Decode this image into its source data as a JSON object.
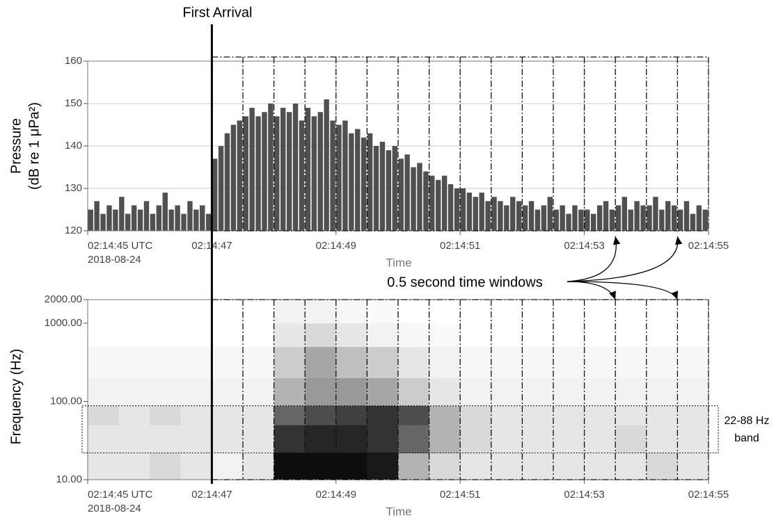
{
  "chart_data": [
    {
      "type": "bar",
      "ylabel": [
        "Pressure",
        "(dB re 1 μPa²)"
      ],
      "xlabel": "Time",
      "color": "#505050",
      "x": [
        45.0,
        45.1,
        45.2,
        45.3,
        45.4,
        45.5,
        45.6,
        45.7,
        45.8,
        45.9,
        46.0,
        46.1,
        46.2,
        46.3,
        46.4,
        46.5,
        46.6,
        46.7,
        46.8,
        46.9,
        47.0,
        47.1,
        47.2,
        47.3,
        47.4,
        47.5,
        47.6,
        47.7,
        47.8,
        47.9,
        48.0,
        48.1,
        48.2,
        48.3,
        48.4,
        48.5,
        48.6,
        48.7,
        48.8,
        48.9,
        49.0,
        49.1,
        49.2,
        49.3,
        49.4,
        49.5,
        49.6,
        49.7,
        49.8,
        49.9,
        50.0,
        50.1,
        50.2,
        50.3,
        50.4,
        50.5,
        50.6,
        50.7,
        50.8,
        50.9,
        51.0,
        51.1,
        51.2,
        51.3,
        51.4,
        51.5,
        51.6,
        51.7,
        51.8,
        51.9,
        52.0,
        52.1,
        52.2,
        52.3,
        52.4,
        52.5,
        52.6,
        52.7,
        52.8,
        52.9,
        53.0,
        53.1,
        53.2,
        53.3,
        53.4,
        53.5,
        53.6,
        53.7,
        53.8,
        53.9,
        54.0,
        54.1,
        54.2,
        54.3,
        54.4,
        54.5,
        54.6,
        54.7,
        54.8,
        54.9
      ],
      "values": [
        125,
        127,
        124,
        126,
        125,
        128,
        124,
        126,
        125,
        127,
        124,
        126,
        129,
        125,
        126,
        124,
        127,
        125,
        126,
        124,
        137,
        140,
        143,
        145,
        146,
        147,
        149,
        147,
        148,
        150,
        147,
        149,
        148,
        150,
        146,
        149,
        147,
        148,
        151,
        146,
        145,
        146,
        143,
        144,
        142,
        143,
        140,
        141,
        139,
        140,
        137,
        138,
        135,
        136,
        134,
        133,
        132,
        133,
        131,
        130,
        130,
        129,
        128,
        129,
        127,
        128,
        127,
        126,
        128,
        127,
        126,
        127,
        125,
        126,
        128,
        125,
        126,
        124,
        126,
        125,
        125,
        124,
        126,
        127,
        125,
        126,
        128,
        125,
        127,
        126,
        126,
        128,
        125,
        127,
        126,
        125,
        127,
        124,
        126,
        125
      ],
      "xlim": [
        45,
        55
      ],
      "ylim": [
        120,
        160
      ],
      "yticks": [
        120,
        130,
        140,
        150,
        160
      ],
      "xticks": [
        {
          "value": 45,
          "label": "02:14:45 UTC"
        },
        {
          "value": 47,
          "label": "02:14:47"
        },
        {
          "value": 49,
          "label": "02:14:49"
        },
        {
          "value": 51,
          "label": "02:14:51"
        },
        {
          "value": 53,
          "label": "02:14:53"
        },
        {
          "value": 55,
          "label": "02:14:55"
        }
      ],
      "date_label": "2018-08-24",
      "grid": true
    },
    {
      "type": "heatmap",
      "ylabel": "Frequency (Hz)",
      "xlabel": "Time",
      "log_y": true,
      "x_edges": [
        45,
        45.5,
        46,
        46.5,
        47,
        47.5,
        48,
        48.5,
        49,
        49.5,
        50,
        50.5,
        51,
        51.5,
        52,
        52.5,
        53,
        53.5,
        54,
        54.5,
        55
      ],
      "y_edges": [
        10,
        22,
        50,
        88,
        200,
        500,
        1000,
        2000
      ],
      "z": [
        [
          0.1,
          0.1,
          0.15,
          0.1,
          0.05,
          0.1,
          0.95,
          0.95,
          0.95,
          0.9,
          0.3,
          0.15,
          0.1,
          0.1,
          0.1,
          0.1,
          0.1,
          0.1,
          0.15,
          0.1
        ],
        [
          0.1,
          0.1,
          0.1,
          0.1,
          0.1,
          0.1,
          0.8,
          0.85,
          0.85,
          0.8,
          0.6,
          0.3,
          0.15,
          0.1,
          0.1,
          0.1,
          0.1,
          0.15,
          0.1,
          0.1
        ],
        [
          0.15,
          0.1,
          0.15,
          0.1,
          0.1,
          0.1,
          0.6,
          0.7,
          0.75,
          0.8,
          0.7,
          0.3,
          0.15,
          0.1,
          0.1,
          0.1,
          0.1,
          0.1,
          0.1,
          0.1
        ],
        [
          0.05,
          0.05,
          0.05,
          0.05,
          0.05,
          0.05,
          0.3,
          0.4,
          0.4,
          0.35,
          0.2,
          0.1,
          0.05,
          0.05,
          0.05,
          0.05,
          0.05,
          0.05,
          0.05,
          0.05
        ],
        [
          0.03,
          0.03,
          0.03,
          0.03,
          0.03,
          0.03,
          0.2,
          0.35,
          0.25,
          0.2,
          0.1,
          0.05,
          0.03,
          0.03,
          0.03,
          0.03,
          0.03,
          0.03,
          0.03,
          0.03
        ],
        [
          0,
          0,
          0,
          0,
          0,
          0,
          0.1,
          0.15,
          0.1,
          0.05,
          0.03,
          0.02,
          0,
          0,
          0,
          0,
          0,
          0,
          0,
          0
        ],
        [
          0,
          0,
          0,
          0,
          0,
          0,
          0.05,
          0.05,
          0.03,
          0.02,
          0,
          0,
          0,
          0,
          0,
          0,
          0,
          0,
          0,
          0
        ]
      ],
      "xlim": [
        45,
        55
      ],
      "ylim": [
        10,
        2000
      ],
      "yticks": [
        {
          "value": 10,
          "label": "10.00"
        },
        {
          "value": 100,
          "label": "100.00"
        },
        {
          "value": 1000,
          "label": "1000.00"
        },
        {
          "value": 2000,
          "label": "2000.00"
        }
      ],
      "xticks": [
        {
          "value": 45,
          "label": "02:14:45 UTC"
        },
        {
          "value": 47,
          "label": "02:14:47"
        },
        {
          "value": 49,
          "label": "02:14:49"
        },
        {
          "value": 51,
          "label": "02:14:51"
        },
        {
          "value": 53,
          "label": "02:14:53"
        },
        {
          "value": 55,
          "label": "02:14:55"
        }
      ],
      "date_label": "2018-08-24",
      "grid": true
    }
  ],
  "annotations": {
    "first_arrival": {
      "x": 47,
      "label": "First Arrival"
    },
    "windows": {
      "label": "0.5 second time windows",
      "edges": [
        47,
        47.5,
        48,
        48.5,
        49,
        49.5,
        50,
        50.5,
        51,
        51.5,
        52,
        52.5,
        53,
        53.5,
        54,
        54.5,
        55
      ],
      "arrow_targets": [
        53.5,
        54.5
      ]
    },
    "band": {
      "lo": 22,
      "hi": 88,
      "label": [
        "22-88 Hz",
        "band"
      ]
    }
  }
}
